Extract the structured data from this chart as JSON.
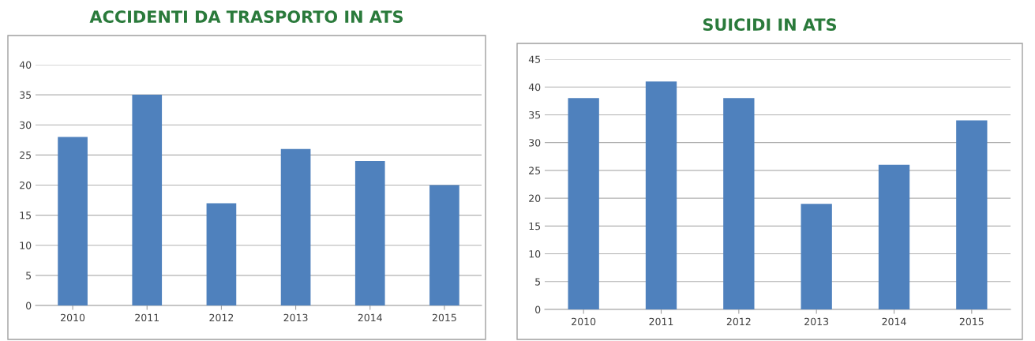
{
  "chart_data": [
    {
      "type": "bar",
      "title": "ACCIDENTI DA TRASPORTO IN ATS",
      "categories": [
        "2010",
        "2011",
        "2012",
        "2013",
        "2014",
        "2015"
      ],
      "values": [
        28,
        35,
        17,
        26,
        24,
        20
      ],
      "color": "#4f81bd",
      "ylim": [
        0,
        40
      ],
      "yticks": [
        0,
        5,
        10,
        15,
        20,
        25,
        30,
        35,
        40
      ],
      "grid": "y"
    },
    {
      "type": "bar",
      "title": "SUICIDI IN ATS",
      "categories": [
        "2010",
        "2011",
        "2012",
        "2013",
        "2014",
        "2015"
      ],
      "values": [
        38,
        41,
        38,
        19,
        26,
        34
      ],
      "color": "#4f81bd",
      "ylim": [
        0,
        45
      ],
      "yticks": [
        0,
        5,
        10,
        15,
        20,
        25,
        30,
        35,
        40,
        45
      ],
      "grid": "y"
    }
  ]
}
